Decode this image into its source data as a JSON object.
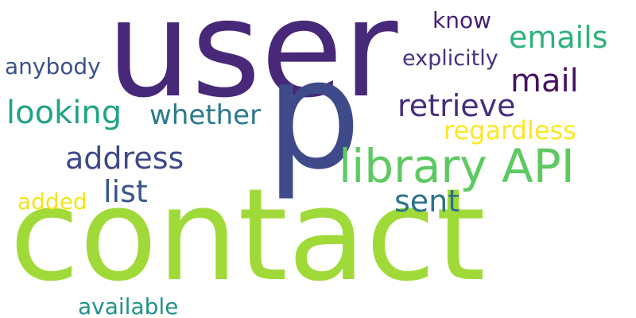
{
  "words": [
    {
      "text": "user",
      "color": "#482878"
    },
    {
      "text": "p",
      "color": "#3e4a89"
    },
    {
      "text": "contact",
      "color": "#a0da39"
    },
    {
      "text": "library API",
      "color": "#5ec962"
    },
    {
      "text": "emails",
      "color": "#2db27d"
    },
    {
      "text": "mail",
      "color": "#471164"
    },
    {
      "text": "retrieve",
      "color": "#472d7b"
    },
    {
      "text": "know",
      "color": "#482173"
    },
    {
      "text": "explicitly",
      "color": "#46327e"
    },
    {
      "text": "anybody",
      "color": "#3b528b"
    },
    {
      "text": "looking",
      "color": "#20a386"
    },
    {
      "text": "whether",
      "color": "#2a788e"
    },
    {
      "text": "regardless",
      "color": "#fde725"
    },
    {
      "text": "address",
      "color": "#3e4989"
    },
    {
      "text": "list",
      "color": "#39568c"
    },
    {
      "text": "sent",
      "color": "#2c728e"
    },
    {
      "text": "added",
      "color": "#f1e51d"
    },
    {
      "text": "available",
      "color": "#21918c"
    }
  ]
}
